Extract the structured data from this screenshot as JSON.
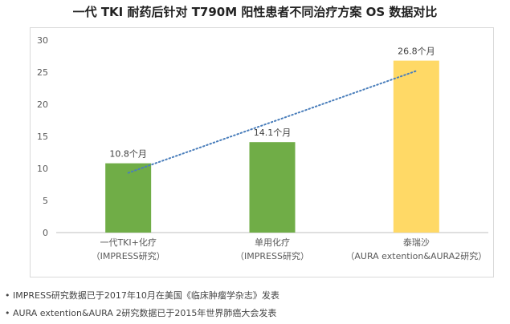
{
  "chart_data": {
    "type": "bar",
    "title": "一代 TKI 耐药后针对 T790M 阳性患者不同治疗方案 OS 数据对比",
    "categories": [
      [
        "一代TKI+化疗",
        "（IMPRESS研究）"
      ],
      [
        "单用化疗",
        "（IMPRESS研究）"
      ],
      [
        "泰瑞沙",
        "（AURA extention&AURA2研究）"
      ]
    ],
    "values": [
      10.8,
      14.1,
      26.8
    ],
    "data_labels": [
      "10.8个月",
      "14.1个月",
      "26.8个月"
    ],
    "colors": [
      "#70ad47",
      "#70ad47",
      "#ffd966"
    ],
    "ylim": [
      0,
      30
    ],
    "yticks": [
      0,
      5,
      10,
      15,
      20,
      25,
      30
    ],
    "trendline": {
      "style": "dotted",
      "color": "#4a7ebb",
      "from": 9.3,
      "to": 25.2
    },
    "xlabel": "",
    "ylabel": "",
    "grid": false
  },
  "footnotes": [
    "IMPRESS研究数据已于2017年10月在美国《临床肿瘤学杂志》发表",
    "AURA extention&AURA 2研究数据已于2015年世界肺癌大会发表"
  ],
  "bullet": "•"
}
